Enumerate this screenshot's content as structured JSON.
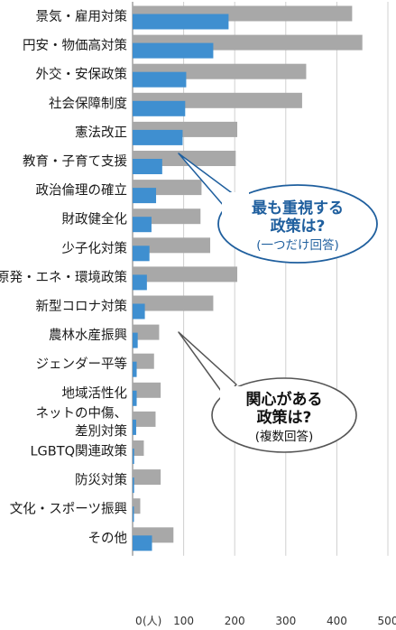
{
  "chart_data": {
    "type": "bar",
    "orientation": "horizontal",
    "categories": [
      "景気・雇用対策",
      "円安・物価高対策",
      "外交・安保政策",
      "社会保障制度",
      "憲法改正",
      "教育・子育て支援",
      "政治倫理の確立",
      "財政健全化",
      "少子化対策",
      "原発・エネ・環境政策",
      "新型コロナ対策",
      "農林水産振興",
      "ジェンダー平等",
      "地域活性化",
      "ネットの中傷、差別対策",
      "LGBTQ関連政策",
      "防災対策",
      "文化・スポーツ振興",
      "その他"
    ],
    "category_lines": [
      [
        "景気・雇用対策"
      ],
      [
        "円安・物価高対策"
      ],
      [
        "外交・安保政策"
      ],
      [
        "社会保障制度"
      ],
      [
        "憲法改正"
      ],
      [
        "教育・子育て支援"
      ],
      [
        "政治倫理の確立"
      ],
      [
        "財政健全化"
      ],
      [
        "少子化対策"
      ],
      [
        "原発・エネ・環境政策"
      ],
      [
        "新型コロナ対策"
      ],
      [
        "農林水産振興"
      ],
      [
        "ジェンダー平等"
      ],
      [
        "地域活性化"
      ],
      [
        "ネットの中傷、",
        "差別対策"
      ],
      [
        "LGBTQ関連政策"
      ],
      [
        "防災対策"
      ],
      [
        "文化・スポーツ振興"
      ],
      [
        "その他"
      ]
    ],
    "series": [
      {
        "name": "関心がある政策は?(複数回答)",
        "color": "#a8a8a8",
        "values": [
          430,
          450,
          340,
          332,
          205,
          202,
          135,
          133,
          152,
          205,
          158,
          52,
          42,
          55,
          45,
          22,
          55,
          15,
          80
        ]
      },
      {
        "name": "最も重視する政策は?(一つだけ回答)",
        "color": "#3f8fd0",
        "values": [
          188,
          158,
          105,
          103,
          98,
          58,
          46,
          37,
          33,
          28,
          24,
          10,
          8,
          8,
          7,
          3,
          3,
          2,
          38
        ]
      }
    ],
    "xticks": [
      "0",
      "100",
      "200",
      "300",
      "400",
      "500"
    ],
    "xtick_values": [
      0,
      100,
      200,
      300,
      400,
      500
    ],
    "x_unit": "(人)",
    "xlim": [
      0,
      500
    ],
    "grid": true
  },
  "annotations": {
    "bubble_blue": {
      "line1": "最も重視する",
      "line2": "政策は?",
      "line3": "(一つだけ回答)"
    },
    "bubble_gray": {
      "line1": "関心がある",
      "line2": "政策は?",
      "line3": "(複数回答)"
    }
  }
}
